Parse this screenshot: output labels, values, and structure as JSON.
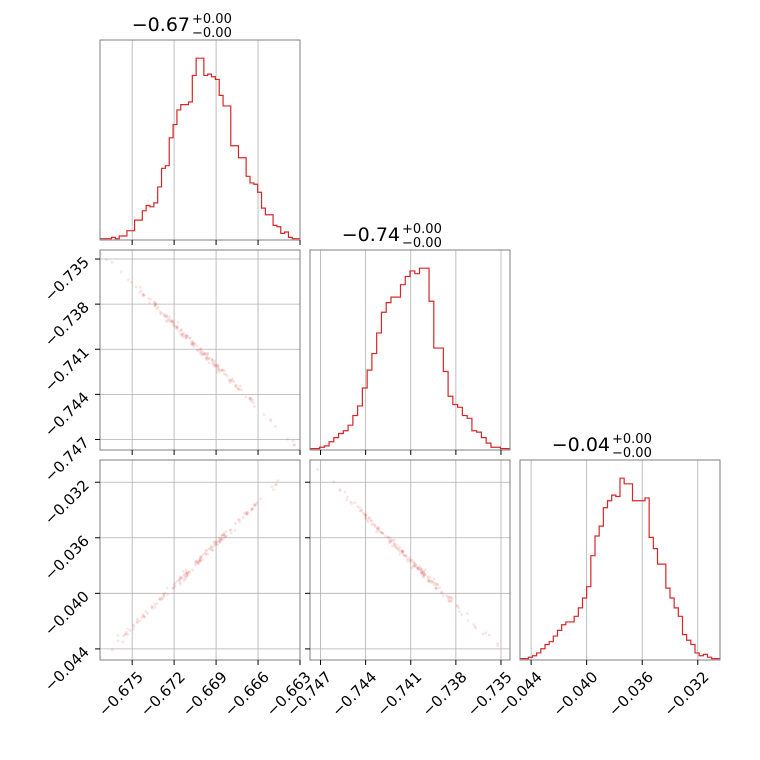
{
  "chart_data": {
    "type": "corner",
    "color": "#d62728",
    "grid": true,
    "params": [
      {
        "title": "−0.67",
        "title_sup": "+0.00",
        "title_sub": "−0.00",
        "range": [
          -0.6773,
          -0.663
        ],
        "ticks": [
          -0.675,
          -0.672,
          -0.669,
          -0.666,
          -0.663
        ],
        "tick_labels": [
          "−0.675",
          "−0.672",
          "−0.669",
          "−0.666",
          "−0.663"
        ],
        "hist": [
          1,
          1,
          1,
          2,
          1,
          3,
          3,
          7,
          7,
          15,
          15,
          22,
          26,
          25,
          28,
          40,
          54,
          56,
          77,
          87,
          98,
          102,
          102,
          104,
          124,
          137,
          137,
          124,
          125,
          123,
          121,
          109,
          101,
          101,
          71,
          71,
          62,
          62,
          48,
          43,
          42,
          36,
          24,
          19,
          19,
          11,
          10,
          5,
          6,
          2,
          1,
          1
        ]
      },
      {
        "title": "−0.74",
        "title_sup": "+0.00",
        "title_sub": "−0.00",
        "range": [
          -0.7477,
          -0.7344
        ],
        "ticks": [
          -0.747,
          -0.744,
          -0.741,
          -0.738,
          -0.735
        ],
        "tick_labels": [
          "−0.747",
          "−0.744",
          "−0.741",
          "−0.738",
          "−0.735"
        ],
        "hist": [
          1,
          1,
          2,
          3,
          6,
          9,
          12,
          14,
          18,
          25,
          32,
          45,
          58,
          70,
          85,
          100,
          107,
          111,
          111,
          120,
          126,
          130,
          128,
          132,
          132,
          108,
          74,
          74,
          57,
          39,
          33,
          31,
          25,
          23,
          14,
          13,
          9,
          5,
          2,
          2,
          1,
          1
        ]
      },
      {
        "title": "−0.04",
        "title_sup": "+0.00",
        "title_sub": "−0.00",
        "range": [
          -0.0448,
          -0.0304
        ],
        "ticks": [
          -0.044,
          -0.04,
          -0.036,
          -0.032
        ],
        "tick_labels": [
          "−0.044",
          "−0.040",
          "−0.036",
          "−0.032"
        ],
        "hist": [
          1,
          1,
          2,
          3,
          5,
          8,
          11,
          13,
          17,
          21,
          25,
          27,
          27,
          31,
          37,
          44,
          52,
          74,
          88,
          95,
          108,
          113,
          117,
          116,
          129,
          125,
          125,
          113,
          113,
          113,
          115,
          87,
          79,
          68,
          68,
          51,
          44,
          37,
          31,
          18,
          14,
          11,
          5,
          3,
          4,
          2,
          1,
          1
        ]
      }
    ]
  }
}
